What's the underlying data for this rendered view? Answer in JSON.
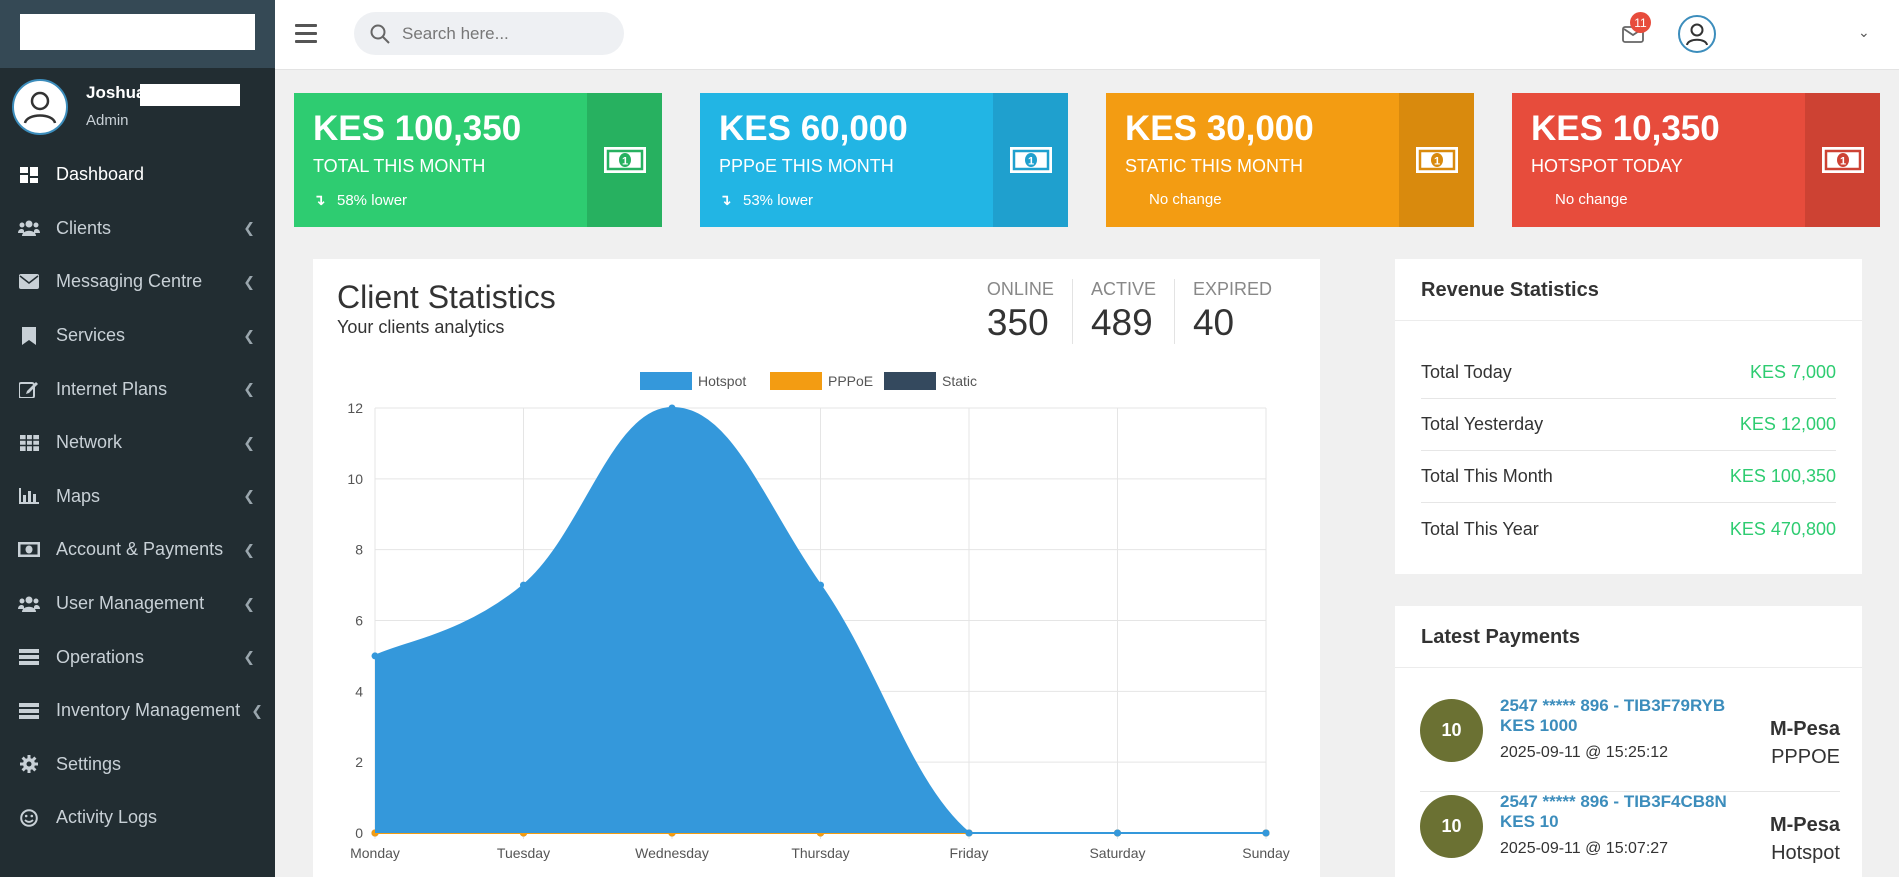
{
  "sidebar": {
    "user": {
      "name": "Joshua",
      "role": "Admin"
    },
    "items": [
      {
        "label": "Dashboard",
        "icon": "dashboard-icon",
        "active": true
      },
      {
        "label": "Clients",
        "icon": "users-icon"
      },
      {
        "label": "Messaging Centre",
        "icon": "envelope-icon"
      },
      {
        "label": "Services",
        "icon": "bookmark-icon"
      },
      {
        "label": "Internet Plans",
        "icon": "edit-icon"
      },
      {
        "label": "Network",
        "icon": "table-icon"
      },
      {
        "label": "Maps",
        "icon": "bar-chart-icon"
      },
      {
        "label": "Account & Payments",
        "icon": "money-icon"
      },
      {
        "label": "User Management",
        "icon": "users-icon"
      },
      {
        "label": "Operations",
        "icon": "server-icon"
      },
      {
        "label": "Inventory Management",
        "icon": "server-icon"
      },
      {
        "label": "Settings",
        "icon": "gear-icon"
      },
      {
        "label": "Activity Logs",
        "icon": "smile-icon"
      }
    ]
  },
  "topbar": {
    "search_placeholder": "Search here...",
    "mail_count": "11"
  },
  "stats": [
    {
      "amount": "KES 100,350",
      "label": "TOTAL THIS MONTH",
      "change": "58% lower",
      "trend": "down",
      "color": "#2ecc71"
    },
    {
      "amount": "KES 60,000",
      "label": "PPPoE THIS MONTH",
      "change": "53% lower",
      "trend": "down",
      "color": "#22b5e4"
    },
    {
      "amount": "KES 30,000",
      "label": "STATIC THIS MONTH",
      "change": "No change",
      "trend": "none",
      "color": "#f39c12"
    },
    {
      "amount": "KES 10,350",
      "label": "HOTSPOT TODAY",
      "change": "No change",
      "trend": "none",
      "color": "#e74c3c"
    }
  ],
  "client_stats": {
    "title": "Client Statistics",
    "subtitle": "Your clients analytics",
    "online_label": "ONLINE",
    "online": "350",
    "active_label": "ACTIVE",
    "active": "489",
    "expired_label": "EXPIRED",
    "expired": "40"
  },
  "chart_data": {
    "type": "area",
    "categories": [
      "Monday",
      "Tuesday",
      "Wednesday",
      "Thursday",
      "Friday",
      "Saturday",
      "Sunday"
    ],
    "series": [
      {
        "name": "Hotspot",
        "color": "#3498db",
        "values": [
          5,
          7,
          12,
          7,
          0,
          0,
          0
        ]
      },
      {
        "name": "PPPoE",
        "color": "#f39c12",
        "values": [
          0,
          0,
          0,
          0,
          0,
          0,
          0
        ]
      },
      {
        "name": "Static",
        "color": "#34495e",
        "values": [
          0,
          0,
          0,
          0,
          0,
          0,
          0
        ]
      }
    ],
    "ylim": [
      0,
      12
    ],
    "yticks": [
      0,
      2,
      4,
      6,
      8,
      10,
      12
    ],
    "grid": true,
    "legend": "top"
  },
  "revenue": {
    "title": "Revenue Statistics",
    "rows": [
      {
        "label": "Total Today",
        "value": "KES 7,000"
      },
      {
        "label": "Total Yesterday",
        "value": "KES 12,000"
      },
      {
        "label": "Total This Month",
        "value": "KES 100,350"
      },
      {
        "label": "Total This Year",
        "value": "KES 470,800"
      }
    ]
  },
  "payments": {
    "title": "Latest Payments",
    "items": [
      {
        "badge": "10",
        "ref": "2547 ***** 896 - TIB3F79RYB KES 1000",
        "date": "2025-09-11 @ 15:25:12",
        "method": "M-Pesa",
        "type": "PPPOE"
      },
      {
        "badge": "10",
        "ref": "2547 ***** 896 - TIB3F4CB8N KES 10",
        "date": "2025-09-11 @ 15:07:27",
        "method": "M-Pesa",
        "type": "Hotspot"
      }
    ]
  }
}
